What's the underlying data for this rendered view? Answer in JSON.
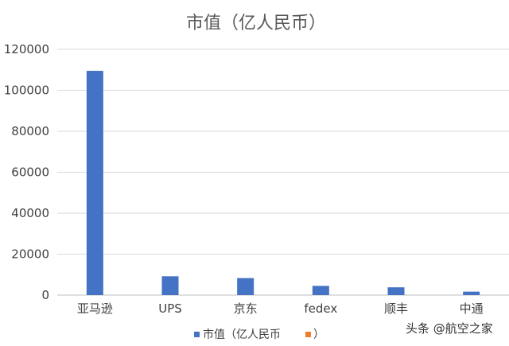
{
  "chart_data": {
    "type": "bar",
    "title": "市值（亿人民币）",
    "categories": [
      "亚马逊",
      "UPS",
      "京东",
      "fedex",
      "顺丰",
      "中通"
    ],
    "series": [
      {
        "name": "市值（亿人民币",
        "values": [
          109500,
          9200,
          8300,
          4500,
          3800,
          1700
        ],
        "color": "#4472C4"
      },
      {
        "name": "）",
        "values": [
          0,
          0,
          0,
          0,
          0,
          0
        ],
        "color": "#ED7D31"
      }
    ],
    "ylim": [
      0,
      120000
    ],
    "yticks": [
      "0",
      "20000",
      "40000",
      "60000",
      "80000",
      "100000",
      "120000"
    ],
    "xlabel": "",
    "ylabel": "",
    "grid": true,
    "legend_position": "bottom"
  },
  "watermark": {
    "text": "头条 @航空之家"
  }
}
